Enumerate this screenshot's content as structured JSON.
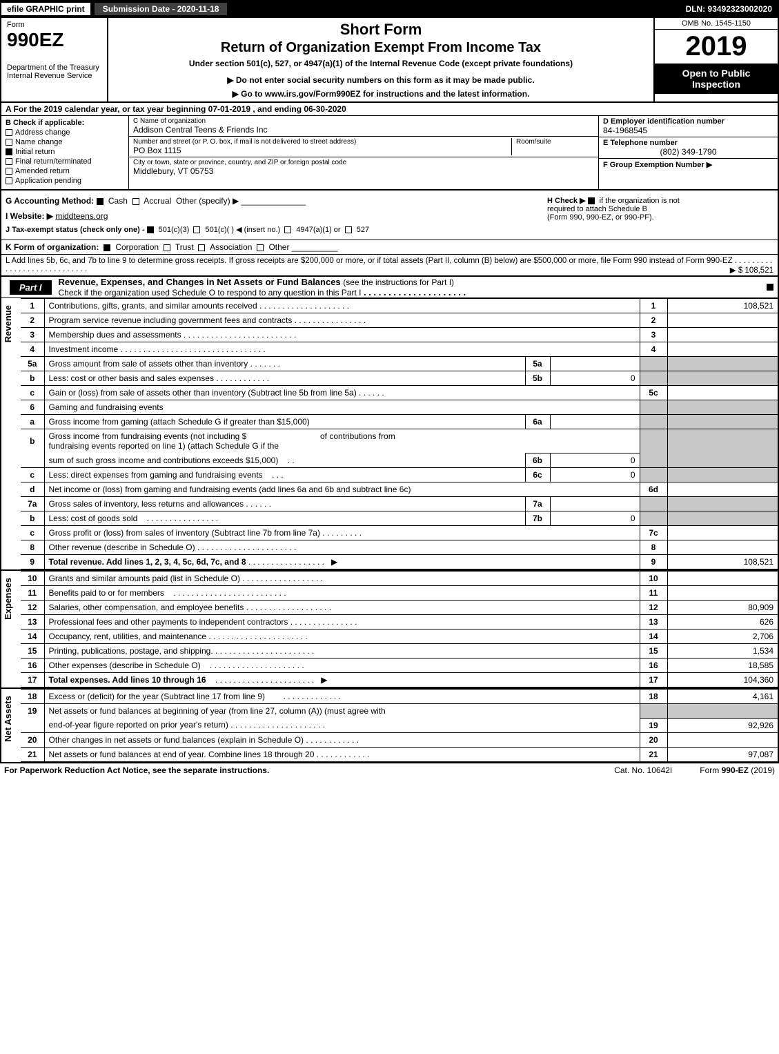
{
  "topbar": {
    "efile": "efile GRAPHIC print",
    "submission": "Submission Date - 2020-11-18",
    "dln": "DLN: 93492323002020"
  },
  "header": {
    "form_label": "Form",
    "form_number": "990EZ",
    "dept": "Department of the Treasury",
    "irs": "Internal Revenue Service",
    "short_form": "Short Form",
    "return_title": "Return of Organization Exempt From Income Tax",
    "under_section": "Under section 501(c), 527, or 4947(a)(1) of the Internal Revenue Code (except private foundations)",
    "do_not": "▶ Do not enter social security numbers on this form as it may be made public.",
    "goto": "▶ Go to www.irs.gov/Form990EZ for instructions and the latest information.",
    "omb": "OMB No. 1545-1150",
    "year": "2019",
    "inspection1": "Open to Public",
    "inspection2": "Inspection"
  },
  "line_a": "A For the 2019 calendar year, or tax year beginning 07-01-2019 , and ending 06-30-2020",
  "entity": {
    "b_label": "B Check if applicable:",
    "address_change": "Address change",
    "name_change": "Name change",
    "initial_return": "Initial return",
    "final_return": "Final return/terminated",
    "amended_return": "Amended return",
    "application_pending": "Application pending",
    "c_label": "C Name of organization",
    "c_value": "Addison Central Teens & Friends Inc",
    "street_label": "Number and street (or P. O. box, if mail is not delivered to street address)",
    "street_value": "PO Box 1115",
    "room_label": "Room/suite",
    "city_label": "City or town, state or province, country, and ZIP or foreign postal code",
    "city_value": "Middlebury, VT  05753",
    "d_label": "D Employer identification number",
    "d_value": "84-1968545",
    "e_label": "E Telephone number",
    "e_value": "(802) 349-1790",
    "f_label": "F Group Exemption Number  ▶",
    "f_value": ""
  },
  "gh": {
    "g_label": "G Accounting Method:",
    "g_cash": "Cash",
    "g_accrual": "Accrual",
    "g_other": "Other (specify) ▶",
    "h_label": "H Check ▶",
    "h_text1": "if the organization is not",
    "h_text2": "required to attach Schedule B",
    "h_text3": "(Form 990, 990-EZ, or 990-PF).",
    "i_label": "I Website: ▶",
    "i_value": "middteens.org",
    "j_label": "J Tax-exempt status (check only one) -",
    "j_501c3": "501(c)(3)",
    "j_501c": "501(c)(  ) ◀ (insert no.)",
    "j_4947": "4947(a)(1) or",
    "j_527": "527"
  },
  "k": {
    "label": "K Form of organization:",
    "corp": "Corporation",
    "trust": "Trust",
    "assoc": "Association",
    "other": "Other"
  },
  "l": {
    "text": "L Add lines 5b, 6c, and 7b to line 9 to determine gross receipts. If gross receipts are $200,000 or more, or if total assets (Part II, column (B) below) are $500,000 or more, file Form 990 instead of Form 990-EZ",
    "amount": "▶ $ 108,521"
  },
  "part1": {
    "tag": "Part I",
    "title": "Revenue, Expenses, and Changes in Net Assets or Fund Balances",
    "sub": "(see the instructions for Part I)",
    "check_line": "Check if the organization used Schedule O to respond to any question in this Part I"
  },
  "rows": {
    "r1": {
      "num": "1",
      "desc": "Contributions, gifts, grants, and similar amounts received",
      "ln": "1",
      "amt": "108,521"
    },
    "r2": {
      "num": "2",
      "desc": "Program service revenue including government fees and contracts",
      "ln": "2",
      "amt": ""
    },
    "r3": {
      "num": "3",
      "desc": "Membership dues and assessments",
      "ln": "3",
      "amt": ""
    },
    "r4": {
      "num": "4",
      "desc": "Investment income",
      "ln": "4",
      "amt": ""
    },
    "r5a": {
      "num": "5a",
      "desc": "Gross amount from sale of assets other than inventory",
      "sub": "5a",
      "subval": ""
    },
    "r5b": {
      "num": "b",
      "desc": "Less: cost or other basis and sales expenses",
      "sub": "5b",
      "subval": "0"
    },
    "r5c": {
      "num": "c",
      "desc": "Gain or (loss) from sale of assets other than inventory (Subtract line 5b from line 5a)",
      "ln": "5c",
      "amt": ""
    },
    "r6": {
      "num": "6",
      "desc": "Gaming and fundraising events"
    },
    "r6a": {
      "num": "a",
      "desc": "Gross income from gaming (attach Schedule G if greater than $15,000)",
      "sub": "6a",
      "subval": ""
    },
    "r6b": {
      "num": "b",
      "desc1": "Gross income from fundraising events (not including $",
      "desc2": "of contributions from",
      "desc3": "fundraising events reported on line 1) (attach Schedule G if the",
      "desc4": "sum of such gross income and contributions exceeds $15,000)",
      "sub": "6b",
      "subval": "0"
    },
    "r6c": {
      "num": "c",
      "desc": "Less: direct expenses from gaming and fundraising events",
      "sub": "6c",
      "subval": "0"
    },
    "r6d": {
      "num": "d",
      "desc": "Net income or (loss) from gaming and fundraising events (add lines 6a and 6b and subtract line 6c)",
      "ln": "6d",
      "amt": ""
    },
    "r7a": {
      "num": "7a",
      "desc": "Gross sales of inventory, less returns and allowances",
      "sub": "7a",
      "subval": ""
    },
    "r7b": {
      "num": "b",
      "desc": "Less: cost of goods sold",
      "sub": "7b",
      "subval": "0"
    },
    "r7c": {
      "num": "c",
      "desc": "Gross profit or (loss) from sales of inventory (Subtract line 7b from line 7a)",
      "ln": "7c",
      "amt": ""
    },
    "r8": {
      "num": "8",
      "desc": "Other revenue (describe in Schedule O)",
      "ln": "8",
      "amt": ""
    },
    "r9": {
      "num": "9",
      "desc": "Total revenue. Add lines 1, 2, 3, 4, 5c, 6d, 7c, and 8",
      "ln": "9",
      "amt": "108,521"
    },
    "r10": {
      "num": "10",
      "desc": "Grants and similar amounts paid (list in Schedule O)",
      "ln": "10",
      "amt": ""
    },
    "r11": {
      "num": "11",
      "desc": "Benefits paid to or for members",
      "ln": "11",
      "amt": ""
    },
    "r12": {
      "num": "12",
      "desc": "Salaries, other compensation, and employee benefits",
      "ln": "12",
      "amt": "80,909"
    },
    "r13": {
      "num": "13",
      "desc": "Professional fees and other payments to independent contractors",
      "ln": "13",
      "amt": "626"
    },
    "r14": {
      "num": "14",
      "desc": "Occupancy, rent, utilities, and maintenance",
      "ln": "14",
      "amt": "2,706"
    },
    "r15": {
      "num": "15",
      "desc": "Printing, publications, postage, and shipping.",
      "ln": "15",
      "amt": "1,534"
    },
    "r16": {
      "num": "16",
      "desc": "Other expenses (describe in Schedule O)",
      "ln": "16",
      "amt": "18,585"
    },
    "r17": {
      "num": "17",
      "desc": "Total expenses. Add lines 10 through 16",
      "ln": "17",
      "amt": "104,360"
    },
    "r18": {
      "num": "18",
      "desc": "Excess or (deficit) for the year (Subtract line 17 from line 9)",
      "ln": "18",
      "amt": "4,161"
    },
    "r19": {
      "num": "19",
      "desc1": "Net assets or fund balances at beginning of year (from line 27, column (A)) (must agree with",
      "desc2": "end-of-year figure reported on prior year's return)",
      "ln": "19",
      "amt": "92,926"
    },
    "r20": {
      "num": "20",
      "desc": "Other changes in net assets or fund balances (explain in Schedule O)",
      "ln": "20",
      "amt": ""
    },
    "r21": {
      "num": "21",
      "desc": "Net assets or fund balances at end of year. Combine lines 18 through 20",
      "ln": "21",
      "amt": "97,087"
    }
  },
  "side": {
    "revenue": "Revenue",
    "expenses": "Expenses",
    "netassets": "Net Assets"
  },
  "footer": {
    "notice": "For Paperwork Reduction Act Notice, see the separate instructions.",
    "cat": "Cat. No. 10642I",
    "formref": "Form 990-EZ (2019)"
  }
}
